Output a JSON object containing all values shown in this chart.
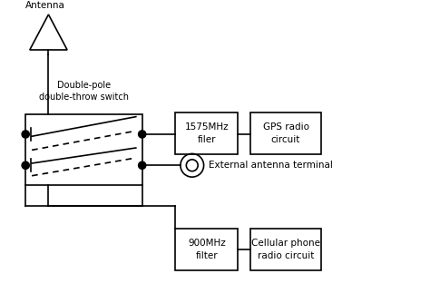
{
  "bg_color": "#ffffff",
  "line_color": "#000000",
  "dashed_color": "#000000",
  "antenna_label": "Antenna",
  "switch_label": "Double-pole\ndouble-throw switch",
  "box1_label": "1575MHz\nfiler",
  "box2_label": "GPS radio\ncircuit",
  "box3_label": "900MHz\nfilter",
  "box4_label": "Cellular phone\nradio circuit",
  "ext_ant_label": "External antenna terminal",
  "figsize": [
    4.74,
    3.34
  ],
  "dpi": 100
}
